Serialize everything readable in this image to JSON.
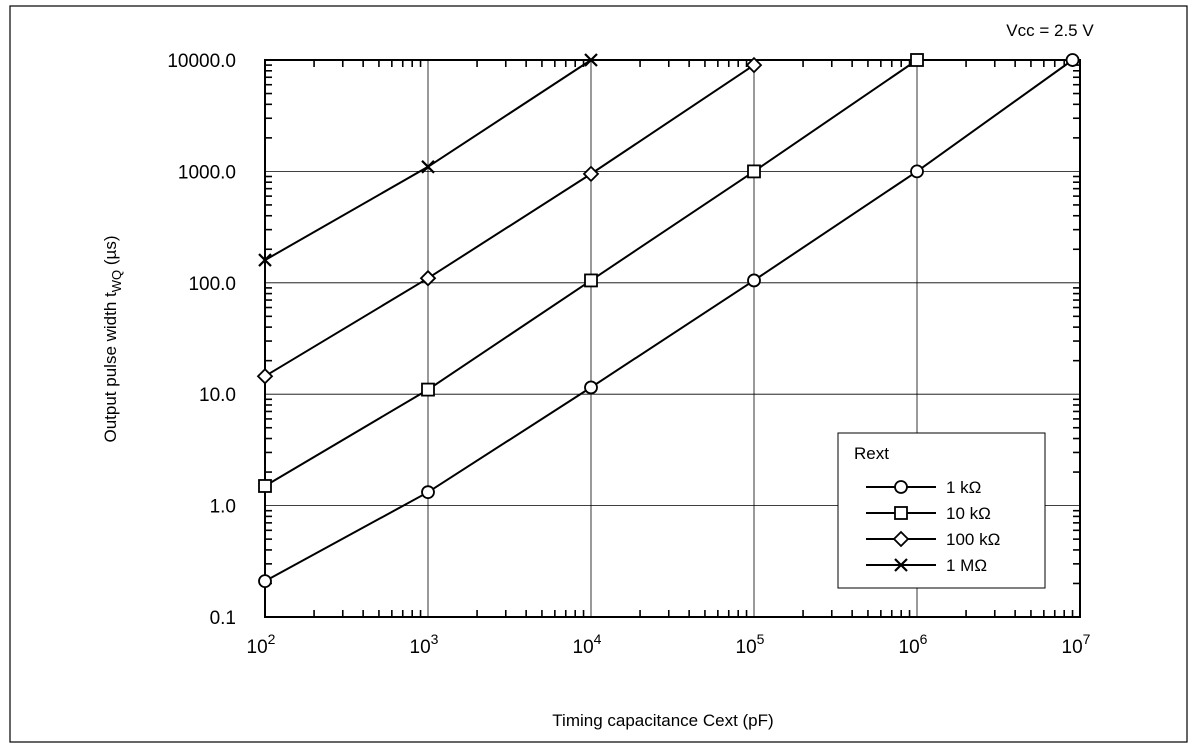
{
  "chart_data": {
    "type": "line",
    "annotation": "Vcc = 2.5 V",
    "xlabel": "Timing capacitance     Cext (pF)",
    "ylabel_prefix": "Output pulse width     t",
    "ylabel_sub": "WQ",
    "ylabel_suffix": " (µs)",
    "x_scale": "log",
    "y_scale": "log",
    "xlim": [
      100,
      10000000
    ],
    "ylim": [
      0.1,
      10000
    ],
    "grid": true,
    "x_tick_base": "10",
    "x_ticks": [
      {
        "value": 100,
        "exp": "2"
      },
      {
        "value": 1000,
        "exp": "3"
      },
      {
        "value": 10000,
        "exp": "4"
      },
      {
        "value": 100000,
        "exp": "5"
      },
      {
        "value": 1000000,
        "exp": "6"
      },
      {
        "value": 10000000,
        "exp": "7"
      }
    ],
    "y_ticks": [
      {
        "value": 0.1,
        "label": "0.1"
      },
      {
        "value": 1,
        "label": "1.0"
      },
      {
        "value": 10,
        "label": "10.0"
      },
      {
        "value": 100,
        "label": "100.0"
      },
      {
        "value": 1000,
        "label": "1000.0"
      },
      {
        "value": 10000,
        "label": "10000.0"
      }
    ],
    "legend": {
      "title": "Rext",
      "placement": "lower-right"
    },
    "series": [
      {
        "name": "1 kΩ",
        "marker": "circle",
        "points": [
          [
            100,
            0.21
          ],
          [
            1000,
            1.32
          ],
          [
            10000,
            11.5
          ],
          [
            100000,
            105
          ],
          [
            1000000,
            1000
          ],
          [
            9000000,
            10000
          ]
        ]
      },
      {
        "name": "10 kΩ",
        "marker": "square",
        "points": [
          [
            100,
            1.5
          ],
          [
            1000,
            11
          ],
          [
            10000,
            105
          ],
          [
            100000,
            1000
          ],
          [
            1000000,
            10000
          ]
        ]
      },
      {
        "name": "100 kΩ",
        "marker": "diamond",
        "points": [
          [
            100,
            14.5
          ],
          [
            1000,
            110
          ],
          [
            10000,
            950
          ],
          [
            100000,
            9000
          ]
        ]
      },
      {
        "name": "1 MΩ",
        "marker": "cross",
        "points": [
          [
            100,
            160
          ],
          [
            1000,
            1100
          ],
          [
            10000,
            10000
          ]
        ]
      }
    ]
  }
}
